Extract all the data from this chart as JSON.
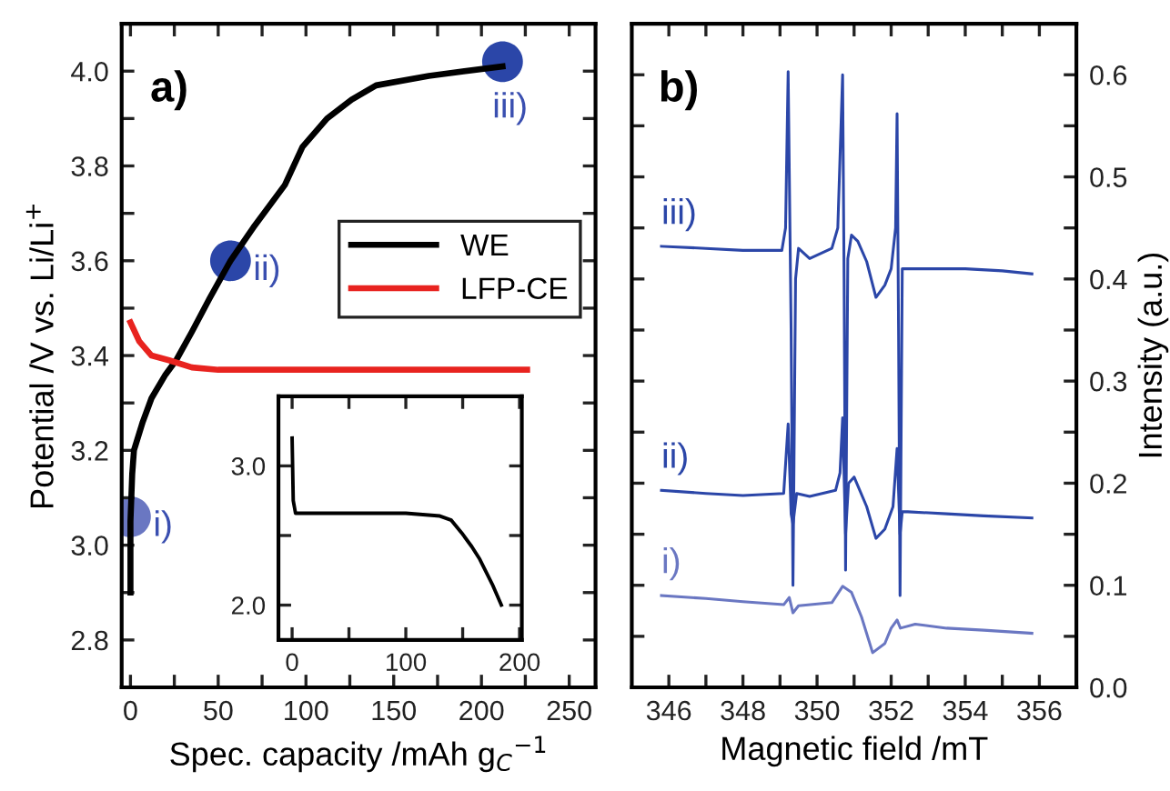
{
  "chart_data": [
    {
      "type": "line",
      "xlabel": "Spec. capacity /mAh g$_{C}$$^{−1}$",
      "ylabel": "Potential /V vs. Li/Li$^{+}$",
      "xlim": [
        -5,
        265
      ],
      "ylim": [
        2.7,
        4.1
      ],
      "xticks": [
        0,
        {
          "value": 25,
          "label": null
        },
        50,
        {
          "value": 75,
          "label": null
        },
        100,
        {
          "value": 125,
          "label": null
        },
        150,
        {
          "value": 175,
          "label": null
        },
        200,
        {
          "value": 225,
          "label": null
        },
        250
      ],
      "yticks": [
        2.8,
        {
          "value": 2.9,
          "label": null
        },
        {
          "value": 3,
          "label": "3.0"
        },
        {
          "value": 3.1,
          "label": null
        },
        3.2,
        {
          "value": 3.3,
          "label": null
        },
        3.4,
        {
          "value": 3.5,
          "label": null
        },
        3.6,
        {
          "value": 3.7,
          "label": null
        },
        3.8,
        {
          "value": 3.9,
          "label": null
        },
        {
          "value": 4,
          "label": "4.0"
        }
      ],
      "legend": "right",
      "grid": false,
      "annotations": [
        "a)",
        {
          "text": "i)",
          "x": 0,
          "y": 3.06
        },
        {
          "text": "ii)",
          "x": 57,
          "y": 3.6
        },
        {
          "text": "iii)",
          "x": 212,
          "y": 4.02
        }
      ],
      "series": [
        {
          "name": "WE",
          "color": "#000000",
          "x": [
            0,
            0,
            1,
            2,
            7,
            12,
            20,
            26,
            35,
            45,
            57,
            70,
            88,
            98,
            112,
            126,
            140,
            170,
            212
          ],
          "values": [
            2.9,
            3.05,
            3.15,
            3.2,
            3.26,
            3.31,
            3.36,
            3.39,
            3.45,
            3.52,
            3.6,
            3.67,
            3.76,
            3.84,
            3.9,
            3.94,
            3.97,
            3.99,
            4.01
          ]
        },
        {
          "name": "LFP-CE",
          "color": "#e8231f",
          "x": [
            0,
            5,
            12,
            22,
            35,
            50,
            100,
            150,
            226
          ],
          "values": [
            3.47,
            3.43,
            3.4,
            3.39,
            3.375,
            3.37,
            3.37,
            3.37,
            3.37
          ]
        },
        {
          "type": "scatter",
          "colors": [
            "#6a77c2",
            "#2b46a8",
            "#2b46a8"
          ],
          "x": [
            0,
            57,
            212
          ],
          "values": [
            3.06,
            3.6,
            4.02
          ]
        }
      ]
    },
    {
      "type": "line",
      "xlim": [
        -12,
        202
      ],
      "ylim": [
        1.75,
        3.5
      ],
      "xticks": [
        0,
        {
          "value": 50,
          "label": null
        },
        100,
        {
          "value": 150,
          "label": null
        },
        200
      ],
      "yticks": [
        {
          "value": 2,
          "label": "2.0"
        },
        {
          "value": 2.5,
          "label": null
        },
        {
          "value": 3,
          "label": "3.0"
        }
      ],
      "grid": false,
      "series": [
        {
          "color": "#000000",
          "x": [
            0,
            1,
            3,
            20,
            60,
            100,
            130,
            140,
            149,
            158,
            165,
            176,
            184
          ],
          "values": [
            3.2,
            2.75,
            2.66,
            2.66,
            2.66,
            2.66,
            2.64,
            2.61,
            2.52,
            2.42,
            2.33,
            2.15,
            2.0
          ]
        }
      ]
    },
    {
      "type": "line",
      "xlabel": "Magnetic field /mT",
      "ylabel": "Intensity (a.u.)",
      "xlim": [
        345,
        357
      ],
      "ylim": [
        0,
        0.65
      ],
      "xticks": [
        346,
        {
          "value": 347,
          "label": null
        },
        348,
        {
          "value": 349,
          "label": null
        },
        350,
        {
          "value": 351,
          "label": null
        },
        352,
        {
          "value": 353,
          "label": null
        },
        354,
        {
          "value": 355,
          "label": null
        },
        356
      ],
      "yticks": [
        {
          "value": 0,
          "label": "0.0"
        },
        {
          "value": 0.05,
          "label": null
        },
        0.1,
        {
          "value": 0.15,
          "label": null
        },
        0.2,
        {
          "value": 0.25,
          "label": null
        },
        0.3,
        {
          "value": 0.35,
          "label": null
        },
        0.4,
        {
          "value": 0.45,
          "label": null
        },
        0.5,
        {
          "value": 0.55,
          "label": null
        },
        0.6
      ],
      "grid": false,
      "annotations": [
        "b)"
      ],
      "series": [
        {
          "name": "iii)",
          "color": "#2b46a8",
          "x": [
            345.8,
            347.0,
            348.0,
            349.05,
            349.15,
            349.22,
            349.3,
            349.35,
            349.42,
            349.5,
            349.8,
            350.4,
            350.56,
            350.69,
            350.73,
            350.77,
            350.83,
            350.93,
            351.1,
            351.34,
            351.59,
            351.83,
            352.0,
            352.12,
            352.16,
            352.2,
            352.24,
            352.3,
            352.5,
            353.0,
            354.0,
            355.0,
            355.8
          ],
          "values": [
            0.432,
            0.43,
            0.428,
            0.428,
            0.45,
            0.603,
            0.35,
            0.1,
            0.4,
            0.43,
            0.42,
            0.43,
            0.45,
            0.6,
            0.4,
            0.115,
            0.42,
            0.443,
            0.437,
            0.417,
            0.382,
            0.394,
            0.41,
            0.45,
            0.562,
            0.35,
            0.09,
            0.41,
            0.41,
            0.41,
            0.41,
            0.408,
            0.405
          ]
        },
        {
          "name": "ii)",
          "color": "#2b46a8",
          "x": [
            345.8,
            347.0,
            348.0,
            349.1,
            349.22,
            349.3,
            349.35,
            349.45,
            349.8,
            350.5,
            350.62,
            350.69,
            350.77,
            350.85,
            351.0,
            351.34,
            351.59,
            351.83,
            352.05,
            352.16,
            352.24,
            352.3,
            352.45,
            353.5,
            354.5,
            355.8
          ],
          "values": [
            0.193,
            0.19,
            0.188,
            0.19,
            0.258,
            0.17,
            0.16,
            0.19,
            0.187,
            0.193,
            0.21,
            0.264,
            0.15,
            0.2,
            0.206,
            0.177,
            0.146,
            0.155,
            0.177,
            0.234,
            0.15,
            0.172,
            0.172,
            0.17,
            0.168,
            0.166
          ]
        },
        {
          "name": "i)",
          "color": "#6a77c2",
          "x": [
            345.8,
            347.0,
            348.0,
            349.1,
            349.25,
            349.35,
            349.5,
            350.4,
            350.69,
            350.93,
            351.2,
            351.5,
            351.83,
            352.0,
            352.16,
            352.25,
            352.65,
            353.5,
            354.5,
            355.8
          ],
          "values": [
            0.09,
            0.087,
            0.084,
            0.081,
            0.088,
            0.073,
            0.08,
            0.083,
            0.099,
            0.093,
            0.069,
            0.034,
            0.043,
            0.058,
            0.066,
            0.058,
            0.062,
            0.058,
            0.056,
            0.053
          ]
        }
      ]
    }
  ]
}
